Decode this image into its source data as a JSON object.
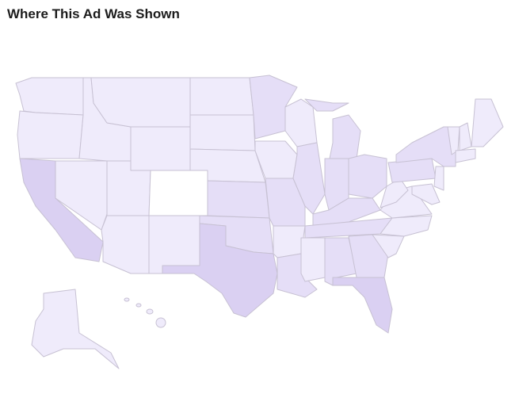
{
  "header": {
    "title": "Where This Ad Was Shown"
  }
}
